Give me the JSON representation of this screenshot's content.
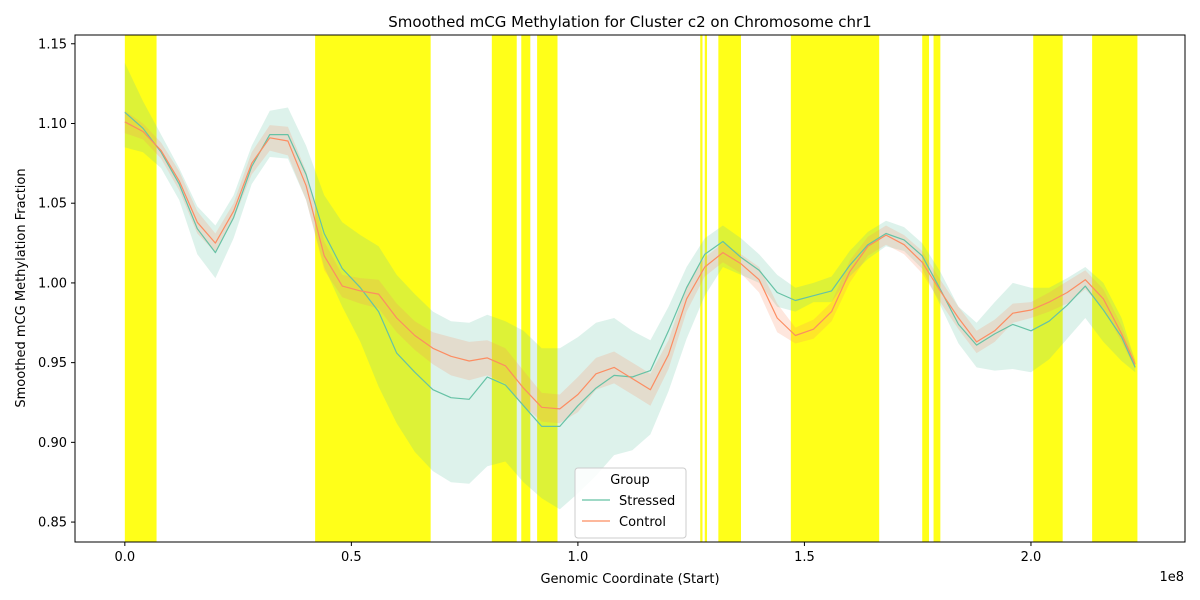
{
  "chart_data": {
    "type": "line",
    "title": "Smoothed mCG Methylation for Cluster c2 on Chromosome chr1",
    "xlabel": "Genomic Coordinate (Start)",
    "ylabel": "Smoothed mCG Methylation Fraction",
    "x_offset_label": "1e8",
    "xlim": [
      -0.11,
      2.34
    ],
    "ylim": [
      0.8375,
      1.1555
    ],
    "x_ticks": [
      0.0,
      0.5,
      1.0,
      1.5,
      2.0
    ],
    "x_tick_labels": [
      "0.0",
      "0.5",
      "1.0",
      "1.5",
      "2.0"
    ],
    "y_ticks": [
      0.85,
      0.9,
      0.95,
      1.0,
      1.05,
      1.1,
      1.15
    ],
    "y_tick_labels": [
      "0.85",
      "0.90",
      "0.95",
      "1.00",
      "1.05",
      "1.10",
      "1.15"
    ],
    "grid": false,
    "highlight_color": "#ffff00",
    "highlight_regions": [
      [
        0.0,
        0.07
      ],
      [
        0.42,
        0.675
      ],
      [
        0.81,
        0.865
      ],
      [
        0.875,
        0.895
      ],
      [
        0.91,
        0.955
      ],
      [
        1.27,
        1.275
      ],
      [
        1.28,
        1.285
      ],
      [
        1.31,
        1.36
      ],
      [
        1.47,
        1.665
      ],
      [
        1.76,
        1.775
      ],
      [
        1.785,
        1.8
      ],
      [
        2.005,
        2.07
      ],
      [
        2.135,
        2.235
      ]
    ],
    "legend": {
      "title": "Group",
      "placement": "lower-center"
    },
    "series": [
      {
        "name": "Stressed",
        "color": "#66c2a5",
        "fill_color": "#66c2a5",
        "x": [
          0.0,
          0.04,
          0.08,
          0.12,
          0.16,
          0.2,
          0.24,
          0.28,
          0.32,
          0.36,
          0.4,
          0.44,
          0.48,
          0.52,
          0.56,
          0.6,
          0.64,
          0.68,
          0.72,
          0.76,
          0.8,
          0.84,
          0.88,
          0.92,
          0.96,
          1.0,
          1.04,
          1.08,
          1.12,
          1.16,
          1.2,
          1.24,
          1.28,
          1.32,
          1.36,
          1.4,
          1.44,
          1.48,
          1.52,
          1.56,
          1.6,
          1.64,
          1.68,
          1.72,
          1.76,
          1.8,
          1.84,
          1.88,
          1.92,
          1.96,
          2.0,
          2.04,
          2.08,
          2.12,
          2.16,
          2.2,
          2.23
        ],
        "values": [
          1.107,
          1.097,
          1.082,
          1.062,
          1.034,
          1.019,
          1.041,
          1.073,
          1.093,
          1.093,
          1.068,
          1.031,
          1.009,
          0.997,
          0.982,
          0.956,
          0.944,
          0.933,
          0.928,
          0.927,
          0.941,
          0.936,
          0.923,
          0.91,
          0.91,
          0.923,
          0.934,
          0.942,
          0.941,
          0.945,
          0.97,
          0.997,
          1.018,
          1.026,
          1.016,
          1.008,
          0.994,
          0.989,
          0.992,
          0.995,
          1.011,
          1.024,
          1.031,
          1.027,
          1.017,
          0.996,
          0.974,
          0.961,
          0.968,
          0.974,
          0.97,
          0.976,
          0.986,
          0.998,
          0.983,
          0.966,
          0.947
        ],
        "lower": [
          1.085,
          1.082,
          1.072,
          1.052,
          1.018,
          1.003,
          1.028,
          1.062,
          1.079,
          1.078,
          1.052,
          1.01,
          0.985,
          0.963,
          0.935,
          0.912,
          0.894,
          0.882,
          0.875,
          0.874,
          0.885,
          0.888,
          0.875,
          0.865,
          0.858,
          0.868,
          0.879,
          0.892,
          0.895,
          0.905,
          0.932,
          0.965,
          0.992,
          1.01,
          1.005,
          1.0,
          0.985,
          0.982,
          0.988,
          0.988,
          1.004,
          1.015,
          1.023,
          1.02,
          1.009,
          0.986,
          0.962,
          0.947,
          0.945,
          0.946,
          0.944,
          0.952,
          0.965,
          0.978,
          0.963,
          0.951,
          0.944
        ],
        "upper": [
          1.138,
          1.114,
          1.093,
          1.072,
          1.048,
          1.036,
          1.055,
          1.086,
          1.108,
          1.11,
          1.086,
          1.055,
          1.038,
          1.03,
          1.023,
          1.005,
          0.993,
          0.982,
          0.976,
          0.975,
          0.98,
          0.976,
          0.97,
          0.959,
          0.959,
          0.966,
          0.975,
          0.978,
          0.97,
          0.964,
          0.985,
          1.01,
          1.028,
          1.036,
          1.028,
          1.018,
          1.005,
          0.997,
          1.0,
          1.004,
          1.02,
          1.032,
          1.039,
          1.035,
          1.025,
          1.007,
          0.985,
          0.975,
          0.988,
          1.0,
          0.997,
          0.997,
          1.003,
          1.01,
          1.0,
          0.978,
          0.951
        ]
      },
      {
        "name": "Control",
        "color": "#fc8d62",
        "fill_color": "#fc8d62",
        "x": [
          0.0,
          0.04,
          0.08,
          0.12,
          0.16,
          0.2,
          0.24,
          0.28,
          0.32,
          0.36,
          0.4,
          0.44,
          0.48,
          0.52,
          0.56,
          0.6,
          0.64,
          0.68,
          0.72,
          0.76,
          0.8,
          0.84,
          0.88,
          0.92,
          0.96,
          1.0,
          1.04,
          1.08,
          1.12,
          1.16,
          1.2,
          1.24,
          1.28,
          1.32,
          1.36,
          1.4,
          1.44,
          1.48,
          1.52,
          1.56,
          1.6,
          1.64,
          1.68,
          1.72,
          1.76,
          1.8,
          1.84,
          1.88,
          1.92,
          1.96,
          2.0,
          2.04,
          2.08,
          2.12,
          2.16,
          2.2,
          2.23
        ],
        "values": [
          1.101,
          1.095,
          1.083,
          1.064,
          1.038,
          1.025,
          1.045,
          1.075,
          1.091,
          1.089,
          1.061,
          1.017,
          0.998,
          0.995,
          0.993,
          0.978,
          0.967,
          0.959,
          0.954,
          0.951,
          0.953,
          0.948,
          0.934,
          0.922,
          0.921,
          0.93,
          0.943,
          0.947,
          0.94,
          0.933,
          0.955,
          0.99,
          1.01,
          1.019,
          1.012,
          1.002,
          0.978,
          0.967,
          0.971,
          0.982,
          1.007,
          1.023,
          1.03,
          1.024,
          1.013,
          0.995,
          0.978,
          0.963,
          0.97,
          0.981,
          0.983,
          0.988,
          0.994,
          1.002,
          0.99,
          0.968,
          0.949
        ],
        "lower": [
          1.094,
          1.09,
          1.078,
          1.058,
          1.031,
          1.019,
          1.04,
          1.068,
          1.083,
          1.08,
          1.052,
          1.008,
          0.991,
          0.987,
          0.984,
          0.969,
          0.958,
          0.949,
          0.942,
          0.939,
          0.942,
          0.937,
          0.923,
          0.913,
          0.912,
          0.919,
          0.933,
          0.937,
          0.93,
          0.923,
          0.946,
          0.982,
          1.004,
          1.013,
          1.006,
          0.994,
          0.969,
          0.962,
          0.965,
          0.976,
          1.0,
          1.017,
          1.024,
          1.018,
          1.006,
          0.988,
          0.971,
          0.956,
          0.963,
          0.975,
          0.978,
          0.982,
          0.987,
          0.996,
          0.984,
          0.963,
          0.946
        ],
        "upper": [
          1.108,
          1.1,
          1.088,
          1.07,
          1.045,
          1.031,
          1.05,
          1.082,
          1.099,
          1.098,
          1.07,
          1.026,
          1.005,
          1.003,
          1.002,
          0.987,
          0.976,
          0.969,
          0.966,
          0.963,
          0.964,
          0.959,
          0.945,
          0.931,
          0.93,
          0.941,
          0.953,
          0.957,
          0.95,
          0.943,
          0.964,
          0.998,
          1.016,
          1.025,
          1.018,
          1.01,
          0.987,
          0.972,
          0.977,
          0.988,
          1.014,
          1.029,
          1.036,
          1.03,
          1.02,
          1.002,
          0.985,
          0.97,
          0.977,
          0.987,
          0.988,
          0.994,
          1.001,
          1.008,
          0.996,
          0.973,
          0.952
        ]
      }
    ]
  }
}
